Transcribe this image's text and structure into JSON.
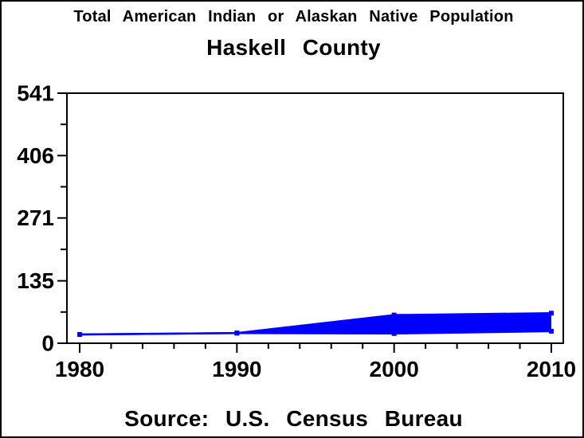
{
  "chart_data": {
    "type": "area",
    "title": "Total American Indian or Alaskan Native Population",
    "subtitle": "Haskell County",
    "footnote": "Source: U.S. Census Bureau",
    "xlabel": "",
    "ylabel": "",
    "x": [
      1980,
      1990,
      2000,
      2010
    ],
    "series": [
      {
        "name": "upper-bound",
        "values": [
          19,
          22,
          61,
          65
        ]
      },
      {
        "name": "lower-bound",
        "values": [
          19,
          22,
          21,
          26
        ]
      }
    ],
    "band_fill_between_series": true,
    "xlim": [
      1980,
      2010
    ],
    "ylim": [
      0,
      541
    ],
    "x_ticks": [
      1980,
      1990,
      2000,
      2010
    ],
    "x_tick_labels": [
      "1980",
      "1990",
      "2000",
      "2010"
    ],
    "x_minor_step": 2,
    "y_ticks": [
      0,
      135,
      271,
      406,
      541
    ],
    "y_tick_labels": [
      "0",
      "135",
      "271",
      "406",
      "541"
    ],
    "y_minor_divisions": 2,
    "grid": false,
    "legend": "none",
    "colors": {
      "band": "#0000ff",
      "line": "#0000ff",
      "marker": "#0000ff",
      "axis": "#000000",
      "background": "#ffffff"
    }
  }
}
